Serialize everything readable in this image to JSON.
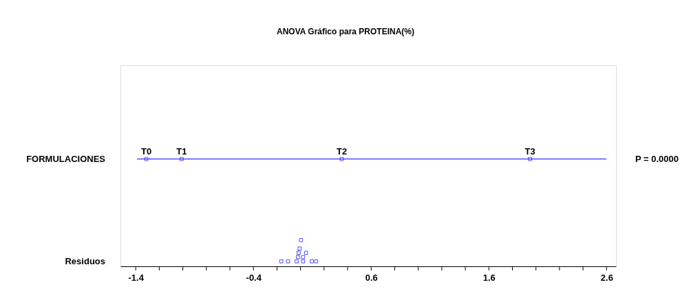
{
  "chart_data": {
    "type": "scatter",
    "orientation": "horizontal",
    "title": "ANOVA Gráfico para PROTEINA(%)",
    "categories": [
      "FORMULACIONES",
      "Residuos"
    ],
    "series": [
      {
        "name": "T0",
        "color": "#0000ff",
        "values": [
          -1.31,
          null
        ]
      },
      {
        "name": "T1",
        "color": "#0000ff",
        "values": [
          -1.01,
          null
        ]
      },
      {
        "name": "T2",
        "color": "#0000ff",
        "values": [
          0.35,
          null
        ]
      },
      {
        "name": "T3",
        "color": "#0000ff",
        "values": [
          1.95,
          null
        ]
      },
      {
        "color": "#0000ff",
        "values": [
          null,
          -0.163
        ]
      },
      {
        "color": "#0000ff",
        "values": [
          null,
          -0.106
        ]
      },
      {
        "color": "#0000ff",
        "values": [
          null,
          -0.033
        ]
      },
      {
        "color": "#0000ff",
        "values": [
          null,
          0.022
        ]
      },
      {
        "color": "#0000ff",
        "values": [
          null,
          0.096
        ]
      },
      {
        "color": "#0000ff",
        "values": [
          null,
          0.133
        ]
      },
      {
        "color": "#0000ff",
        "values": [
          null,
          -0.022
        ]
      },
      {
        "color": "#0000ff",
        "values": [
          null,
          0.022
        ]
      },
      {
        "color": "#0000ff",
        "values": [
          null,
          -0.016
        ]
      },
      {
        "color": "#0000ff",
        "values": [
          null,
          0.047
        ]
      },
      {
        "color": "#0000ff",
        "values": [
          null,
          -0.008
        ]
      },
      {
        "color": "#0000ff",
        "values": [
          null,
          0.004
        ]
      }
    ],
    "marker": "square",
    "xlim": [
      -1.53,
      2.68
    ],
    "xticks": [
      -1.4,
      {
        "value": -1.2,
        "label": null
      },
      {
        "value": -1.0,
        "label": null
      },
      {
        "value": -0.8,
        "label": null
      },
      {
        "value": -0.6,
        "label": null
      },
      -0.4,
      {
        "value": -0.2,
        "label": null
      },
      {
        "value": 0.0,
        "label": null
      },
      {
        "value": 0.2,
        "label": null
      },
      {
        "value": 0.4,
        "label": null
      },
      0.6,
      {
        "value": 0.8,
        "label": null
      },
      {
        "value": 1.0,
        "label": null
      },
      {
        "value": 1.2,
        "label": null
      },
      {
        "value": 1.4,
        "label": null
      },
      1.6,
      {
        "value": 1.8,
        "label": null
      },
      {
        "value": 2.0,
        "label": null
      },
      {
        "value": 2.2,
        "label": null
      },
      {
        "value": 2.4,
        "label": null
      },
      2.6
    ],
    "ref_lines": [
      {
        "axis": "y",
        "value": "FORMULACIONES",
        "color": "#0000ff"
      }
    ],
    "annotations": [
      "P = 0.0000"
    ],
    "grid": false
  }
}
